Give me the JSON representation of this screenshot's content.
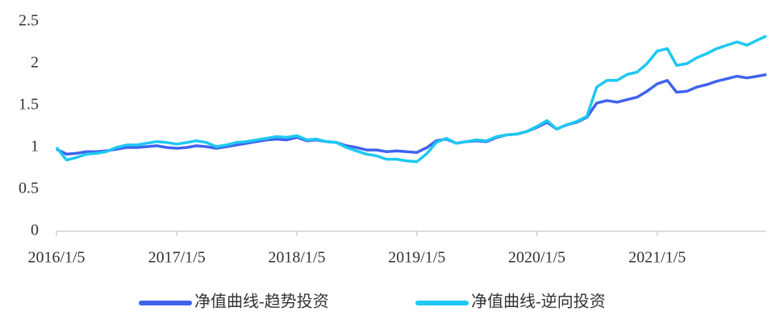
{
  "chart_data": {
    "type": "line",
    "x": [
      "2016/1/5",
      "2016/2/5",
      "2016/3/5",
      "2016/4/5",
      "2016/5/5",
      "2016/6/5",
      "2016/7/5",
      "2016/8/5",
      "2016/9/5",
      "2016/10/5",
      "2016/11/5",
      "2016/12/5",
      "2017/1/5",
      "2017/2/5",
      "2017/3/5",
      "2017/4/5",
      "2017/5/5",
      "2017/6/5",
      "2017/7/5",
      "2017/8/5",
      "2017/9/5",
      "2017/10/5",
      "2017/11/5",
      "2017/12/5",
      "2018/1/5",
      "2018/2/5",
      "2018/3/5",
      "2018/4/5",
      "2018/5/5",
      "2018/6/5",
      "2018/7/5",
      "2018/8/5",
      "2018/9/5",
      "2018/10/5",
      "2018/11/5",
      "2018/12/5",
      "2019/1/5",
      "2019/2/5",
      "2019/3/5",
      "2019/4/5",
      "2019/5/5",
      "2019/6/5",
      "2019/7/5",
      "2019/8/5",
      "2019/9/5",
      "2019/10/5",
      "2019/11/5",
      "2019/12/5",
      "2020/1/5",
      "2020/2/5",
      "2020/3/5",
      "2020/4/5",
      "2020/5/5",
      "2020/6/5",
      "2020/7/5",
      "2020/8/5",
      "2020/9/5",
      "2020/10/5",
      "2020/11/5",
      "2020/12/5",
      "2021/1/5",
      "2021/2/5",
      "2021/3/5",
      "2021/4/5",
      "2021/5/5",
      "2021/6/5",
      "2021/7/5",
      "2021/8/5",
      "2021/9/5",
      "2021/10/5",
      "2021/11/5",
      "2021/12/3"
    ],
    "series": [
      {
        "name": "净值曲线-趋势投资",
        "color": "#4063ee",
        "values": [
          0.98,
          0.92,
          0.93,
          0.95,
          0.95,
          0.96,
          0.98,
          1.0,
          1.0,
          1.01,
          1.02,
          1.0,
          0.99,
          1.0,
          1.02,
          1.01,
          0.99,
          1.01,
          1.03,
          1.05,
          1.07,
          1.09,
          1.1,
          1.09,
          1.12,
          1.08,
          1.09,
          1.07,
          1.06,
          1.02,
          1.0,
          0.97,
          0.97,
          0.95,
          0.96,
          0.95,
          0.94,
          1.0,
          1.08,
          1.1,
          1.05,
          1.07,
          1.08,
          1.07,
          1.12,
          1.15,
          1.16,
          1.19,
          1.24,
          1.3,
          1.22,
          1.27,
          1.3,
          1.36,
          1.53,
          1.56,
          1.54,
          1.57,
          1.6,
          1.67,
          1.76,
          1.8,
          1.66,
          1.67,
          1.72,
          1.75,
          1.79,
          1.82,
          1.85,
          1.83,
          1.85,
          1.87
        ]
      },
      {
        "name": "净值曲线-逆向投资",
        "color": "#1ec8f2",
        "values": [
          1.0,
          0.85,
          0.88,
          0.92,
          0.93,
          0.95,
          1.0,
          1.03,
          1.03,
          1.05,
          1.07,
          1.06,
          1.04,
          1.06,
          1.08,
          1.06,
          1.01,
          1.03,
          1.06,
          1.07,
          1.09,
          1.11,
          1.13,
          1.12,
          1.14,
          1.09,
          1.1,
          1.07,
          1.06,
          1.0,
          0.96,
          0.92,
          0.9,
          0.86,
          0.86,
          0.84,
          0.83,
          0.93,
          1.06,
          1.11,
          1.05,
          1.07,
          1.09,
          1.08,
          1.13,
          1.15,
          1.16,
          1.19,
          1.25,
          1.32,
          1.22,
          1.27,
          1.31,
          1.37,
          1.72,
          1.8,
          1.8,
          1.87,
          1.9,
          2.0,
          2.15,
          2.18,
          1.98,
          2.0,
          2.07,
          2.12,
          2.18,
          2.22,
          2.26,
          2.22,
          2.28,
          2.33
        ]
      }
    ],
    "xlim": [
      "2016/1/5",
      "2021/12/3"
    ],
    "xticks": [
      "2016/1/5",
      "2017/1/5",
      "2018/1/5",
      "2019/1/5",
      "2020/1/5",
      "2021/1/5"
    ],
    "ylim": [
      0,
      2.5
    ],
    "yticks": [
      0,
      0.5,
      1,
      1.5,
      2,
      2.5
    ],
    "grid": false,
    "legend": "bottom"
  }
}
